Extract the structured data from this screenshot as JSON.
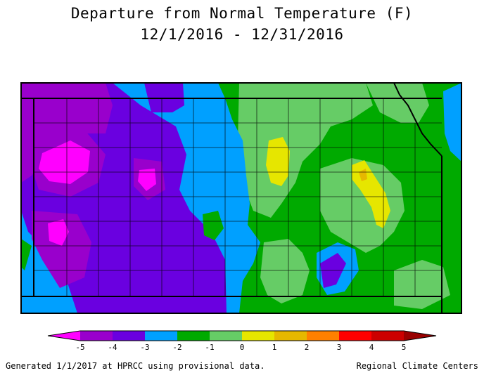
{
  "title": "Departure from Normal Temperature (F)",
  "date_range": "12/1/2016 - 12/31/2016",
  "colors": {
    "lt_neg5": "#ff00ff",
    "neg5_neg4": "#9900cc",
    "neg4_neg3": "#6a00e0",
    "neg3_neg2": "#00a0ff",
    "neg2_neg1": "#00aa00",
    "neg1_0": "#66cc66",
    "0_1": "#e6e600",
    "1_2": "#e6b800",
    "2_3": "#ff8000",
    "3_4": "#ff0000",
    "4_5": "#cc0000",
    "gt_5": "#990000"
  },
  "legend": {
    "ticks": [
      "-5",
      "-4",
      "-3",
      "-2",
      "-1",
      "0",
      "1",
      "2",
      "3",
      "4",
      "5"
    ]
  },
  "footer_left": "Generated 1/1/2017 at HPRCC using provisional data.",
  "footer_right": "Regional Climate Centers"
}
